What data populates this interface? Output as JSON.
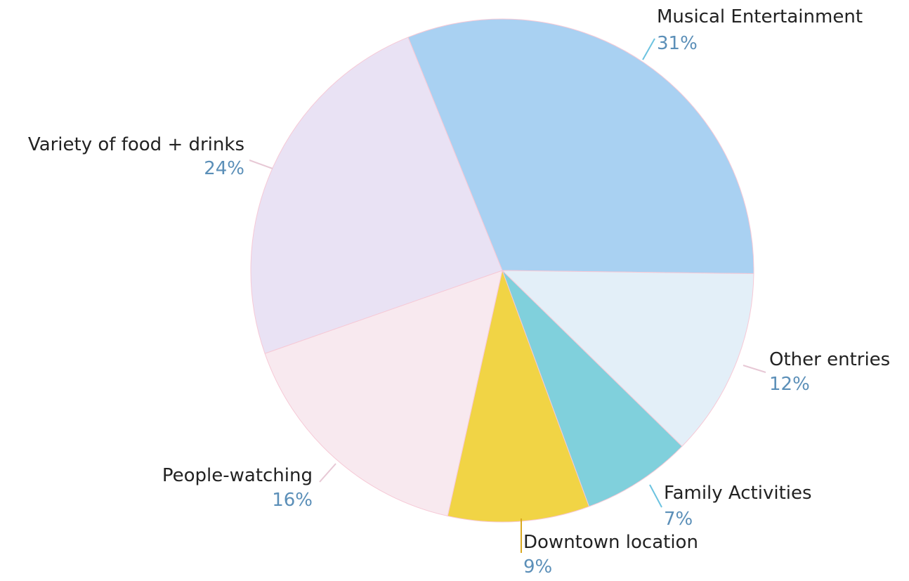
{
  "chart_data": {
    "type": "pie",
    "categories": [
      "Musical Entertainment",
      "Other entries",
      "Family Activities",
      "Downtown location",
      "People-watching",
      "Variety of food + drinks"
    ],
    "values": [
      31,
      12,
      7,
      9,
      16,
      24
    ],
    "value_labels": [
      "31%",
      "12%",
      "7%",
      "9%",
      "16%",
      "24%"
    ],
    "colors": [
      "#a9d1f2",
      "#e3eff8",
      "#80d0dc",
      "#f1d445",
      "#f8e9ef",
      "#e9e2f4"
    ]
  }
}
